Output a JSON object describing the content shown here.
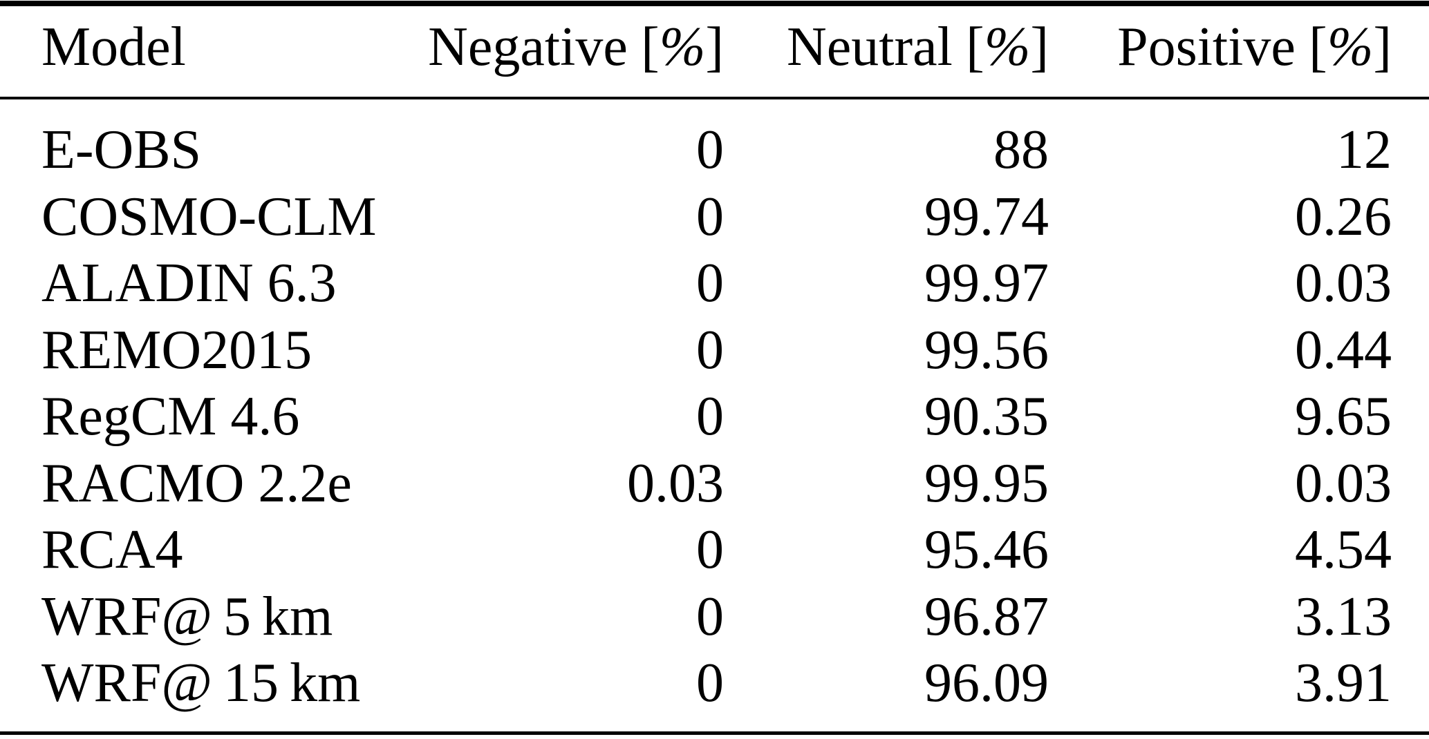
{
  "figure": {
    "type": "table",
    "description": "Sentiment/sign distribution per climate model, in percent",
    "columns": [
      {
        "key": "model",
        "label": "Model",
        "align": "left"
      },
      {
        "key": "negative",
        "label": "Negative",
        "unit_open": "[",
        "unit_symbol": "%",
        "unit_close": "]",
        "align": "right"
      },
      {
        "key": "neutral",
        "label": "Neutral",
        "unit_open": "[",
        "unit_symbol": "%",
        "unit_close": "]",
        "align": "right"
      },
      {
        "key": "positive",
        "label": "Positive",
        "unit_open": "[",
        "unit_symbol": "%",
        "unit_close": "]",
        "align": "right"
      }
    ],
    "rows": [
      {
        "model": "E-OBS",
        "negative": "0",
        "neutral": "88",
        "positive": "12"
      },
      {
        "model": "COSMO-CLM",
        "negative": "0",
        "neutral": "99.74",
        "positive": "0.26"
      },
      {
        "model": "ALADIN 6.3",
        "negative": "0",
        "neutral": "99.97",
        "positive": "0.03"
      },
      {
        "model": "REMO2015",
        "negative": "0",
        "neutral": "99.56",
        "positive": "0.44"
      },
      {
        "model": "RegCM 4.6",
        "negative": "0",
        "neutral": "90.35",
        "positive": "9.65"
      },
      {
        "model": "RACMO 2.2e",
        "negative": "0.03",
        "neutral": "99.95",
        "positive": "0.03"
      },
      {
        "model": "RCA4",
        "negative": "0",
        "neutral": "95.46",
        "positive": "4.54"
      },
      {
        "model": "WRF@ 5 km",
        "negative": "0",
        "neutral": "96.87",
        "positive": "3.13"
      },
      {
        "model": "WRF@ 15 km",
        "negative": "0",
        "neutral": "96.09",
        "positive": "3.91"
      }
    ],
    "colors": {
      "background": "#ffffff",
      "text": "#000000",
      "rule": "#000000"
    }
  }
}
